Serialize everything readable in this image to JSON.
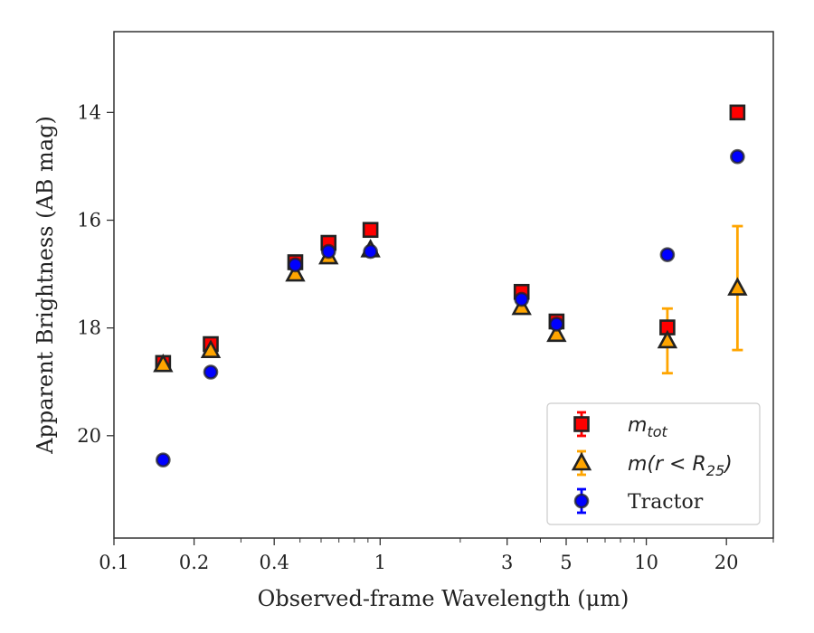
{
  "chart_data": {
    "type": "scatter",
    "title": "",
    "xlabel": "Observed-frame Wavelength (μm)",
    "ylabel": "Apparent Brightness (AB mag)",
    "xscale": "log",
    "xlim": [
      0.1,
      30
    ],
    "ylim": [
      21.9,
      12.5
    ],
    "y_inverted": true,
    "x_ticks": [
      {
        "value": 0.1,
        "label": "0.1"
      },
      {
        "value": 0.2,
        "label": "0.2"
      },
      {
        "value": 0.4,
        "label": "0.4"
      },
      {
        "value": 1,
        "label": "1"
      },
      {
        "value": 3,
        "label": "3"
      },
      {
        "value": 5,
        "label": "5"
      },
      {
        "value": 10,
        "label": "10"
      },
      {
        "value": 20,
        "label": "20"
      }
    ],
    "y_ticks": [
      {
        "value": 14,
        "label": "14"
      },
      {
        "value": 16,
        "label": "16"
      },
      {
        "value": 18,
        "label": "18"
      },
      {
        "value": 20,
        "label": "20"
      }
    ],
    "grid": false,
    "legend_position": "bottom-right",
    "series": [
      {
        "name": "m_tot",
        "legend_base": "m",
        "legend_sub": "tot",
        "marker": "square",
        "color": "#ff0000",
        "edge_color": "#222222",
        "points": [
          {
            "x": 0.153,
            "y": 18.65
          },
          {
            "x": 0.231,
            "y": 18.3
          },
          {
            "x": 0.48,
            "y": 16.78
          },
          {
            "x": 0.64,
            "y": 16.42
          },
          {
            "x": 0.92,
            "y": 16.18
          },
          {
            "x": 3.4,
            "y": 17.33
          },
          {
            "x": 4.6,
            "y": 17.88
          },
          {
            "x": 12.0,
            "y": 17.99
          },
          {
            "x": 22.0,
            "y": 14.0
          }
        ]
      },
      {
        "name": "m(r < R_25)",
        "legend_base": "m(r < R",
        "legend_sub": "25",
        "legend_end": ")",
        "marker": "triangle",
        "color": "#ffa500",
        "edge_color": "#222222",
        "points": [
          {
            "x": 0.153,
            "y": 18.68
          },
          {
            "x": 0.231,
            "y": 18.42
          },
          {
            "x": 0.48,
            "y": 17.0
          },
          {
            "x": 0.64,
            "y": 16.68
          },
          {
            "x": 0.92,
            "y": 16.55
          },
          {
            "x": 3.4,
            "y": 17.62
          },
          {
            "x": 4.6,
            "y": 18.12
          },
          {
            "x": 12.0,
            "y": 18.24,
            "yerr": 0.6
          },
          {
            "x": 22.0,
            "y": 17.26,
            "yerr": 1.15
          }
        ]
      },
      {
        "name": "Tractor",
        "legend_base": "Tractor",
        "marker": "circle",
        "color": "#0000ff",
        "edge_color": "#222222",
        "points": [
          {
            "x": 0.153,
            "y": 20.45
          },
          {
            "x": 0.231,
            "y": 18.82
          },
          {
            "x": 0.48,
            "y": 16.83
          },
          {
            "x": 0.64,
            "y": 16.58
          },
          {
            "x": 0.92,
            "y": 16.58
          },
          {
            "x": 3.4,
            "y": 17.47
          },
          {
            "x": 4.6,
            "y": 17.93
          },
          {
            "x": 12.0,
            "y": 16.64
          },
          {
            "x": 22.0,
            "y": 14.82
          }
        ]
      }
    ]
  }
}
